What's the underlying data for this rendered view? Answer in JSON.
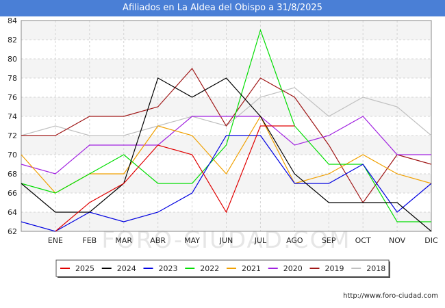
{
  "chart_data": {
    "type": "line",
    "title": "Afiliados en La Aldea del Obispo a 31/8/2025",
    "categories": [
      "",
      "ENE",
      "FEB",
      "MAR",
      "ABR",
      "MAY",
      "JUN",
      "JUL",
      "AGO",
      "SEP",
      "OCT",
      "NOV",
      "DIC"
    ],
    "ylim": [
      62,
      84
    ],
    "yticks": [
      62,
      64,
      66,
      68,
      70,
      72,
      74,
      76,
      78,
      80,
      82,
      84
    ],
    "grid": true,
    "legend_position": "bottom",
    "series": [
      {
        "name": "2025",
        "color": "#e00000",
        "values": [
          null,
          62,
          65,
          67,
          71,
          70,
          64,
          73,
          73,
          null,
          null,
          null,
          null
        ]
      },
      {
        "name": "2024",
        "color": "#000000",
        "values": [
          67,
          64,
          64,
          67,
          78,
          76,
          78,
          74,
          68,
          65,
          65,
          65,
          62
        ]
      },
      {
        "name": "2023",
        "color": "#0000e0",
        "values": [
          63,
          62,
          64,
          63,
          64,
          66,
          72,
          72,
          67,
          67,
          69,
          64,
          67
        ]
      },
      {
        "name": "2022",
        "color": "#00dd00",
        "values": [
          67,
          66,
          68,
          70,
          67,
          67,
          71,
          83,
          73,
          69,
          69,
          63,
          63
        ]
      },
      {
        "name": "2021",
        "color": "#f0a000",
        "values": [
          70,
          66,
          68,
          68,
          73,
          72,
          68,
          74,
          67,
          68,
          70,
          68,
          67
        ]
      },
      {
        "name": "2020",
        "color": "#a020e0",
        "values": [
          69,
          68,
          71,
          71,
          71,
          74,
          74,
          74,
          71,
          72,
          74,
          70,
          70
        ]
      },
      {
        "name": "2019",
        "color": "#a01818",
        "values": [
          72,
          72,
          74,
          74,
          75,
          79,
          73,
          78,
          76,
          71,
          65,
          70,
          69
        ]
      },
      {
        "name": "2018",
        "color": "#c0c0c0",
        "values": [
          72,
          73,
          72,
          72,
          73,
          74,
          73,
          76,
          77,
          74,
          76,
          75,
          72
        ]
      }
    ]
  },
  "watermark": "FORO-CIUDAD.COM",
  "footer": "http://www.foro-ciudad.com"
}
